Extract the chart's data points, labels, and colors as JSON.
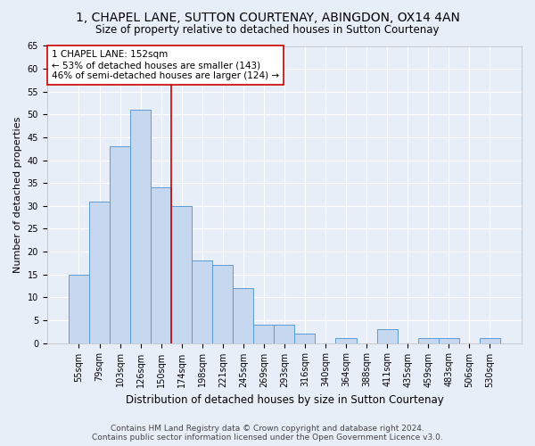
{
  "title": "1, CHAPEL LANE, SUTTON COURTENAY, ABINGDON, OX14 4AN",
  "subtitle": "Size of property relative to detached houses in Sutton Courtenay",
  "xlabel": "Distribution of detached houses by size in Sutton Courtenay",
  "ylabel": "Number of detached properties",
  "categories": [
    "55sqm",
    "79sqm",
    "103sqm",
    "126sqm",
    "150sqm",
    "174sqm",
    "198sqm",
    "221sqm",
    "245sqm",
    "269sqm",
    "293sqm",
    "316sqm",
    "340sqm",
    "364sqm",
    "388sqm",
    "411sqm",
    "435sqm",
    "459sqm",
    "483sqm",
    "506sqm",
    "530sqm"
  ],
  "values": [
    15,
    31,
    43,
    51,
    34,
    30,
    18,
    17,
    12,
    4,
    4,
    2,
    0,
    1,
    0,
    3,
    0,
    1,
    1,
    0,
    1
  ],
  "bar_color": "#c5d8ef",
  "bar_edge_color": "#5b9bd5",
  "vline_x": 4.5,
  "vline_color": "#cc0000",
  "ylim": [
    0,
    65
  ],
  "yticks": [
    0,
    5,
    10,
    15,
    20,
    25,
    30,
    35,
    40,
    45,
    50,
    55,
    60,
    65
  ],
  "annotation_text": "1 CHAPEL LANE: 152sqm\n← 53% of detached houses are smaller (143)\n46% of semi-detached houses are larger (124) →",
  "annotation_box_color": "#ffffff",
  "annotation_box_edge": "#cc0000",
  "footer_line1": "Contains HM Land Registry data © Crown copyright and database right 2024.",
  "footer_line2": "Contains public sector information licensed under the Open Government Licence v3.0.",
  "bg_color": "#e8eef8",
  "plot_bg_color": "#e8eef8",
  "title_fontsize": 10,
  "subtitle_fontsize": 8.5,
  "xlabel_fontsize": 8.5,
  "ylabel_fontsize": 8,
  "tick_fontsize": 7,
  "footer_fontsize": 6.5,
  "ann_fontsize": 7.5
}
